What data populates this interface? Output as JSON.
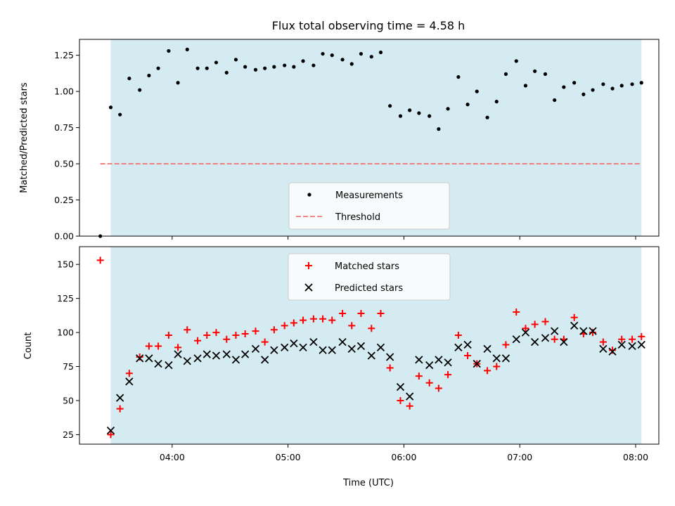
{
  "title": "Flux total observing time = 4.58 h",
  "colors": {
    "observing_band": "#d4ebf1",
    "measurement": "#000000",
    "threshold": "#f07878",
    "matched": "#ff0000",
    "predicted": "#000000"
  },
  "chart_data": [
    {
      "type": "scatter",
      "panel": "top",
      "ylabel": "Matched/Predicted stars",
      "xlabel": "",
      "ylim": [
        0,
        1.36
      ],
      "xlim_hours": [
        3.2,
        8.2
      ],
      "yticks": [
        0.0,
        0.25,
        0.5,
        0.75,
        1.0,
        1.25
      ],
      "ytick_labels": [
        "0.00",
        "0.25",
        "0.50",
        "0.75",
        "1.00",
        "1.25"
      ],
      "observing_band_hours": [
        3.47,
        8.05
      ],
      "threshold": {
        "name": "Threshold",
        "y": 0.5,
        "x_start_hours": 3.38,
        "x_end_hours": 8.05
      },
      "legend": {
        "placement": "lower-center",
        "entries": [
          "Measurements",
          "Threshold"
        ]
      },
      "series": [
        {
          "name": "Measurements",
          "x_hours": [
            3.38,
            3.47,
            3.55,
            3.63,
            3.72,
            3.8,
            3.88,
            3.97,
            4.05,
            4.13,
            4.22,
            4.3,
            4.38,
            4.47,
            4.55,
            4.63,
            4.72,
            4.8,
            4.88,
            4.97,
            5.05,
            5.13,
            5.22,
            5.3,
            5.38,
            5.47,
            5.55,
            5.63,
            5.72,
            5.8,
            5.88,
            5.97,
            6.05,
            6.13,
            6.22,
            6.3,
            6.38,
            6.47,
            6.55,
            6.63,
            6.72,
            6.8,
            6.88,
            6.97,
            7.05,
            7.13,
            7.22,
            7.3,
            7.38,
            7.47,
            7.55,
            7.63,
            7.72,
            7.8,
            7.88,
            7.97,
            8.05
          ],
          "y": [
            0.0,
            0.89,
            0.84,
            1.09,
            1.01,
            1.11,
            1.16,
            1.28,
            1.06,
            1.29,
            1.16,
            1.16,
            1.2,
            1.13,
            1.22,
            1.17,
            1.15,
            1.16,
            1.17,
            1.18,
            1.17,
            1.21,
            1.18,
            1.26,
            1.25,
            1.22,
            1.19,
            1.26,
            1.24,
            1.27,
            0.9,
            0.83,
            0.87,
            0.85,
            0.83,
            0.74,
            0.88,
            1.1,
            0.91,
            1.0,
            0.82,
            0.93,
            1.12,
            1.21,
            1.04,
            1.14,
            1.12,
            0.94,
            1.03,
            1.06,
            0.98,
            1.01,
            1.05,
            1.02,
            1.04,
            1.05,
            1.06
          ]
        }
      ]
    },
    {
      "type": "scatter",
      "panel": "bottom",
      "ylabel": "Count",
      "xlabel": "Time (UTC)",
      "ylim": [
        18,
        163
      ],
      "xlim_hours": [
        3.2,
        8.2
      ],
      "yticks": [
        25,
        50,
        75,
        100,
        125,
        150
      ],
      "ytick_labels": [
        "25",
        "50",
        "75",
        "100",
        "125",
        "150"
      ],
      "xticks_hours": [
        4,
        5,
        6,
        7,
        8
      ],
      "xtick_labels": [
        "04:00",
        "05:00",
        "06:00",
        "07:00",
        "08:00"
      ],
      "observing_band_hours": [
        3.47,
        8.05
      ],
      "legend": {
        "placement": "upper-center",
        "entries": [
          "Matched stars",
          "Predicted stars"
        ]
      },
      "series": [
        {
          "name": "Matched stars",
          "marker": "plus",
          "x_hours": [
            3.38,
            3.47,
            3.55,
            3.63,
            3.72,
            3.8,
            3.88,
            3.97,
            4.05,
            4.13,
            4.22,
            4.3,
            4.38,
            4.47,
            4.55,
            4.63,
            4.72,
            4.8,
            4.88,
            4.97,
            5.05,
            5.13,
            5.22,
            5.3,
            5.38,
            5.47,
            5.55,
            5.63,
            5.72,
            5.8,
            5.88,
            5.97,
            6.05,
            6.13,
            6.22,
            6.3,
            6.38,
            6.47,
            6.55,
            6.63,
            6.72,
            6.8,
            6.88,
            6.97,
            7.05,
            7.13,
            7.22,
            7.3,
            7.38,
            7.47,
            7.55,
            7.63,
            7.72,
            7.8,
            7.88,
            7.97,
            8.05
          ],
          "y": [
            153,
            25,
            44,
            70,
            82,
            90,
            90,
            98,
            89,
            102,
            94,
            98,
            100,
            95,
            98,
            99,
            101,
            93,
            102,
            105,
            107,
            109,
            110,
            110,
            109,
            114,
            105,
            114,
            103,
            114,
            74,
            50,
            46,
            68,
            63,
            59,
            69,
            98,
            83,
            77,
            72,
            75,
            91,
            115,
            103,
            106,
            108,
            95,
            95,
            111,
            99,
            100,
            93,
            87,
            95,
            95,
            97
          ]
        },
        {
          "name": "Predicted stars",
          "marker": "x",
          "x_hours": [
            3.47,
            3.55,
            3.63,
            3.72,
            3.8,
            3.88,
            3.97,
            4.05,
            4.13,
            4.22,
            4.3,
            4.38,
            4.47,
            4.55,
            4.63,
            4.72,
            4.8,
            4.88,
            4.97,
            5.05,
            5.13,
            5.22,
            5.3,
            5.38,
            5.47,
            5.55,
            5.63,
            5.72,
            5.8,
            5.88,
            5.97,
            6.05,
            6.13,
            6.22,
            6.3,
            6.38,
            6.47,
            6.55,
            6.63,
            6.72,
            6.8,
            6.88,
            6.97,
            7.05,
            7.13,
            7.22,
            7.3,
            7.38,
            7.47,
            7.55,
            7.63,
            7.72,
            7.8,
            7.88,
            7.97,
            8.05
          ],
          "y": [
            28,
            52,
            64,
            81,
            81,
            77,
            76,
            84,
            79,
            81,
            84,
            83,
            84,
            80,
            84,
            88,
            80,
            87,
            89,
            92,
            89,
            93,
            87,
            87,
            93,
            88,
            90,
            83,
            89,
            82,
            60,
            53,
            80,
            76,
            80,
            78,
            89,
            91,
            77,
            88,
            81,
            81,
            95,
            100,
            93,
            96,
            101,
            93,
            105,
            101,
            101,
            88,
            86,
            91,
            90,
            91
          ]
        }
      ]
    }
  ]
}
